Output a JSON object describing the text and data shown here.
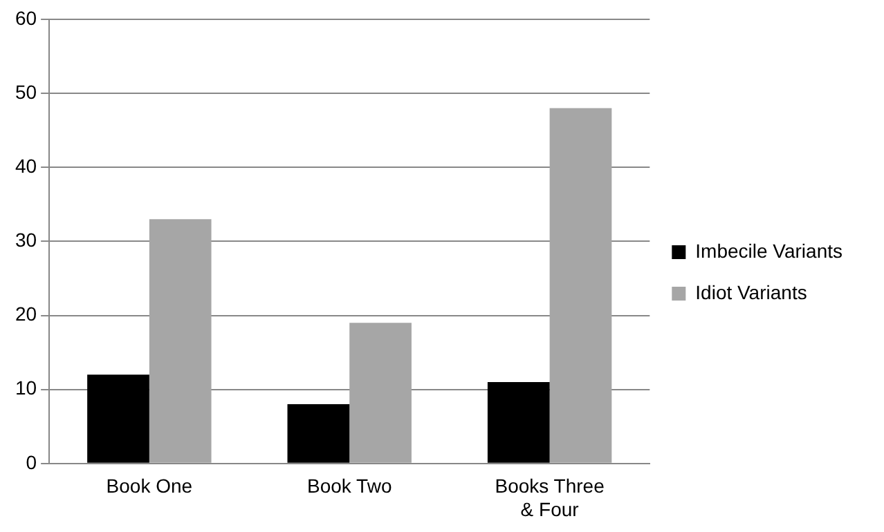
{
  "chart_data": {
    "type": "bar",
    "categories": [
      "Book One",
      "Book Two",
      "Books Three & Four"
    ],
    "series": [
      {
        "name": "Imbecile Variants",
        "color": "#000000",
        "values": [
          12,
          8,
          11
        ]
      },
      {
        "name": "Idiot Variants",
        "color": "#a6a6a6",
        "values": [
          33,
          19,
          48
        ]
      }
    ],
    "ylim": [
      0,
      60
    ],
    "yticks": [
      0,
      10,
      20,
      30,
      40,
      50,
      60
    ],
    "grid": "y",
    "legend": "right"
  }
}
